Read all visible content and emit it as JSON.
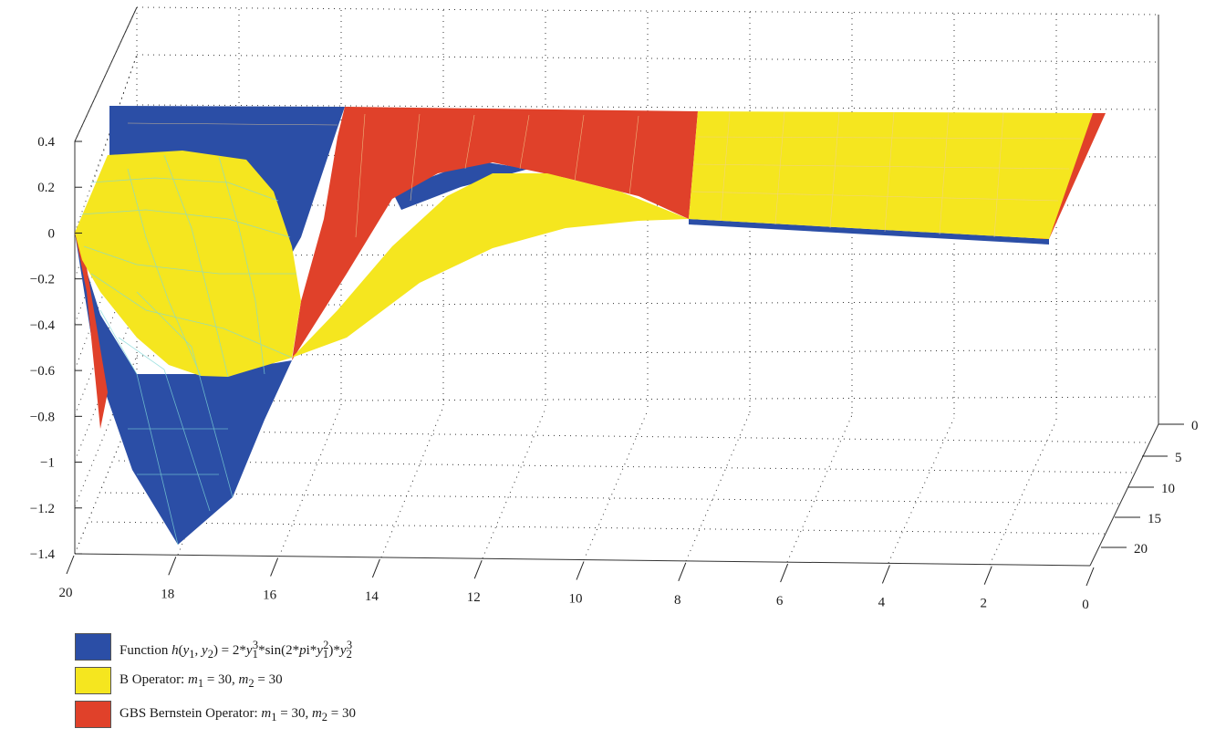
{
  "chart_data": {
    "type": "surface",
    "z_ticks": [
      "0.4",
      "0.2",
      "0",
      "−0.2",
      "−0.4",
      "−0.6",
      "−0.8",
      "−1",
      "−1.2",
      "−1.4"
    ],
    "x_ticks": [
      "20",
      "18",
      "16",
      "14",
      "12",
      "10",
      "8",
      "6",
      "4",
      "2",
      "0"
    ],
    "y_ticks": [
      "0",
      "5",
      "10",
      "15",
      "20"
    ],
    "zlim": [
      -1.4,
      0.4
    ],
    "xlim": [
      20,
      0
    ],
    "ylim": [
      0,
      20
    ],
    "grid": true,
    "legend_position": "bottom-left",
    "series": [
      {
        "name": "Function h(y1, y2) = 2*y1^3*sin(2*pi*y1^2)*y2^3",
        "color": "#2b4ea6"
      },
      {
        "name": "B Operator: m1 = 30, m2 = 30",
        "color": "#f5e61f"
      },
      {
        "name": "GBS Bernstein Operator: m1 = 30, m2 = 30",
        "color": "#e0412a"
      }
    ]
  },
  "legend": {
    "function": {
      "prefix": "Function ",
      "fn": "h",
      "open": "(",
      "v1": "y",
      "s1": "1",
      "comma": ", ",
      "v2": "y",
      "s2": "2",
      "mid": ") = 2*",
      "v3": "y",
      "s3": "1",
      "p3": "3",
      "sin": "*sin(2*",
      "pi": "p",
      "i": "i*",
      "v4": "y",
      "s4": "1",
      "p4": "2",
      "tail": ")*",
      "v5": "y",
      "s5": "2",
      "p5": "3"
    },
    "b_op": {
      "prefix": "B Operator: ",
      "m": "m",
      "s1": "1",
      "eq1": " = 30, ",
      "m2": "m",
      "s2": "2",
      "eq2": " = 30"
    },
    "gbs_op": {
      "prefix": "GBS Bernstein Operator: ",
      "m": "m",
      "s1": "1",
      "eq1": " = 30, ",
      "m2": "m",
      "s2": "2",
      "eq2": " = 30"
    }
  }
}
